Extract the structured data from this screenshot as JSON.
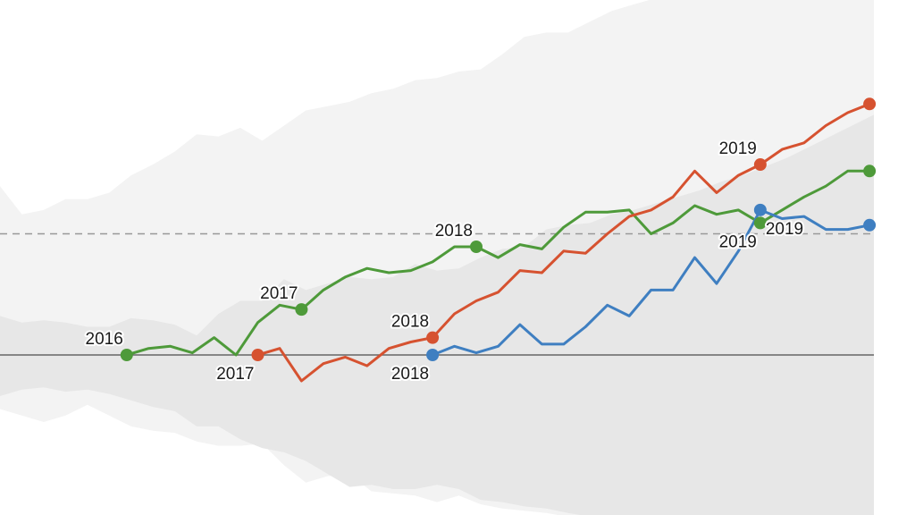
{
  "chart_data": {
    "type": "line",
    "title": "",
    "xlabel": "",
    "ylabel": "",
    "x_range": [
      0,
      40
    ],
    "ylim": [
      -8.5,
      15.5
    ],
    "grid": false,
    "legend": "none",
    "reference_lines": [
      {
        "y": 0,
        "style": "solid",
        "color": "#666666"
      },
      {
        "y": 5.6,
        "style": "dashed",
        "color": "#999999"
      }
    ],
    "bands": {
      "outer": {
        "color": "#f3f3f3",
        "upper": [
          [
            0,
            7.8
          ],
          [
            1,
            6.5
          ],
          [
            2,
            6.7
          ],
          [
            3,
            7.2
          ],
          [
            4,
            7.2
          ],
          [
            5,
            7.5
          ],
          [
            6,
            8.3
          ],
          [
            7,
            8.8
          ],
          [
            8,
            9.4
          ],
          [
            9,
            10.2
          ],
          [
            10,
            10.1
          ],
          [
            11,
            10.5
          ],
          [
            12,
            9.9
          ],
          [
            13,
            10.6
          ],
          [
            14,
            11.3
          ],
          [
            15,
            11.5
          ],
          [
            16,
            11.7
          ],
          [
            17,
            12.1
          ],
          [
            18,
            12.3
          ],
          [
            19,
            12.7
          ],
          [
            20,
            12.8
          ],
          [
            21,
            13.1
          ],
          [
            22,
            13.2
          ],
          [
            23,
            13.9
          ],
          [
            24,
            14.7
          ],
          [
            25,
            14.9
          ],
          [
            26,
            14.9
          ],
          [
            27,
            15.4
          ],
          [
            28,
            15.9
          ],
          [
            29,
            16.2
          ],
          [
            30,
            16.5
          ],
          [
            31,
            16.7
          ],
          [
            32,
            16.9
          ],
          [
            33,
            17.1
          ],
          [
            34,
            17.3
          ],
          [
            35,
            17.5
          ],
          [
            36,
            17.6
          ],
          [
            37,
            17.8
          ],
          [
            38,
            17.9
          ],
          [
            39,
            18.0
          ],
          [
            40,
            18.1
          ]
        ],
        "lower": [
          [
            0,
            -2.5
          ],
          [
            1,
            -2.8
          ],
          [
            2,
            -3.1
          ],
          [
            3,
            -2.8
          ],
          [
            4,
            -2.3
          ],
          [
            5,
            -2.8
          ],
          [
            6,
            -3.3
          ],
          [
            7,
            -3.5
          ],
          [
            8,
            -3.6
          ],
          [
            9,
            -4.0
          ],
          [
            10,
            -4.2
          ],
          [
            11,
            -4.2
          ],
          [
            12,
            -4.1
          ],
          [
            13,
            -5.1
          ],
          [
            14,
            -5.9
          ],
          [
            15,
            -5.6
          ],
          [
            16,
            -5.5
          ],
          [
            17,
            -6.3
          ],
          [
            18,
            -6.4
          ],
          [
            19,
            -6.5
          ],
          [
            20,
            -6.8
          ],
          [
            21,
            -6.5
          ],
          [
            22,
            -6.9
          ],
          [
            23,
            -7.1
          ],
          [
            24,
            -7.2
          ],
          [
            25,
            -7.3
          ],
          [
            26,
            -7.5
          ],
          [
            27,
            -7.8
          ],
          [
            28,
            -8.0
          ],
          [
            29,
            -8.2
          ],
          [
            30,
            -8.3
          ],
          [
            31,
            -8.4
          ],
          [
            32,
            -8.6
          ],
          [
            33,
            -8.8
          ],
          [
            34,
            -9.0
          ],
          [
            35,
            -9.2
          ],
          [
            36,
            -9.4
          ],
          [
            37,
            -9.6
          ],
          [
            38,
            -9.8
          ],
          [
            39,
            -10.0
          ],
          [
            40,
            -10.2
          ]
        ]
      },
      "inner": {
        "color": "#e7e7e7",
        "upper": [
          [
            0,
            1.8
          ],
          [
            1,
            1.5
          ],
          [
            2,
            1.6
          ],
          [
            3,
            1.5
          ],
          [
            4,
            1.3
          ],
          [
            5,
            1.3
          ],
          [
            6,
            1.7
          ],
          [
            7,
            1.6
          ],
          [
            8,
            1.4
          ],
          [
            9,
            0.9
          ],
          [
            10,
            1.9
          ],
          [
            11,
            2.5
          ],
          [
            12,
            2.5
          ],
          [
            13,
            3.5
          ],
          [
            14,
            3.0
          ],
          [
            15,
            3.3
          ],
          [
            16,
            3.6
          ],
          [
            17,
            3.5
          ],
          [
            18,
            3.6
          ],
          [
            19,
            4.2
          ],
          [
            20,
            3.9
          ],
          [
            21,
            4.0
          ],
          [
            22,
            4.5
          ],
          [
            23,
            4.9
          ],
          [
            24,
            5.0
          ],
          [
            25,
            5.8
          ],
          [
            26,
            6.0
          ],
          [
            27,
            6.1
          ],
          [
            28,
            6.5
          ],
          [
            29,
            6.7
          ],
          [
            30,
            7.0
          ],
          [
            31,
            7.3
          ],
          [
            32,
            7.6
          ],
          [
            33,
            8.0
          ],
          [
            34,
            8.3
          ],
          [
            35,
            8.7
          ],
          [
            36,
            9.1
          ],
          [
            37,
            9.6
          ],
          [
            38,
            10.1
          ],
          [
            39,
            10.6
          ],
          [
            40,
            11.1
          ]
        ],
        "lower": [
          [
            0,
            -1.9
          ],
          [
            1,
            -1.6
          ],
          [
            2,
            -1.5
          ],
          [
            3,
            -1.7
          ],
          [
            4,
            -1.6
          ],
          [
            5,
            -1.8
          ],
          [
            6,
            -2.1
          ],
          [
            7,
            -2.4
          ],
          [
            8,
            -2.6
          ],
          [
            9,
            -3.3
          ],
          [
            10,
            -3.3
          ],
          [
            11,
            -3.9
          ],
          [
            12,
            -4.3
          ],
          [
            13,
            -4.5
          ],
          [
            14,
            -4.9
          ],
          [
            15,
            -5.5
          ],
          [
            16,
            -6.1
          ],
          [
            17,
            -6.0
          ],
          [
            18,
            -6.2
          ],
          [
            19,
            -6.2
          ],
          [
            20,
            -6.0
          ],
          [
            21,
            -6.2
          ],
          [
            22,
            -6.7
          ],
          [
            23,
            -6.8
          ],
          [
            24,
            -7.0
          ],
          [
            25,
            -7.1
          ],
          [
            26,
            -7.3
          ],
          [
            27,
            -7.5
          ],
          [
            28,
            -7.8
          ],
          [
            29,
            -8.0
          ],
          [
            30,
            -8.2
          ],
          [
            31,
            -8.4
          ],
          [
            32,
            -8.6
          ],
          [
            33,
            -8.8
          ],
          [
            34,
            -9.0
          ],
          [
            35,
            -9.2
          ],
          [
            36,
            -9.4
          ],
          [
            37,
            -9.6
          ],
          [
            38,
            -9.8
          ],
          [
            39,
            -10.0
          ],
          [
            40,
            -10.2
          ]
        ]
      }
    },
    "series": [
      {
        "color": "#4e9a3a",
        "points": [
          [
            5.8,
            0.0
          ],
          [
            6.8,
            0.3
          ],
          [
            7.8,
            0.4
          ],
          [
            8.8,
            0.1
          ],
          [
            9.8,
            0.8
          ],
          [
            10.8,
            0.0
          ],
          [
            11.8,
            1.5
          ],
          [
            12.8,
            2.3
          ],
          [
            13.8,
            2.1
          ],
          [
            14.8,
            3.0
          ],
          [
            15.8,
            3.6
          ],
          [
            16.8,
            4.0
          ],
          [
            17.8,
            3.8
          ],
          [
            18.8,
            3.9
          ],
          [
            19.8,
            4.3
          ],
          [
            20.8,
            5.0
          ],
          [
            21.8,
            5.0
          ],
          [
            22.8,
            4.5
          ],
          [
            23.8,
            5.1
          ],
          [
            24.8,
            4.9
          ],
          [
            25.8,
            5.9
          ],
          [
            26.8,
            6.6
          ],
          [
            27.8,
            6.6
          ],
          [
            28.8,
            6.7
          ],
          [
            29.8,
            5.6
          ],
          [
            30.8,
            6.1
          ],
          [
            31.8,
            6.9
          ],
          [
            32.8,
            6.5
          ],
          [
            33.8,
            6.7
          ],
          [
            34.8,
            6.1
          ],
          [
            35.8,
            6.7
          ],
          [
            36.8,
            7.3
          ],
          [
            37.8,
            7.8
          ],
          [
            38.8,
            8.5
          ],
          [
            39.8,
            8.5
          ]
        ],
        "markers": [
          [
            5.8,
            0.0
          ],
          [
            13.8,
            2.1
          ],
          [
            21.8,
            5.0
          ],
          [
            34.8,
            6.1
          ],
          [
            39.8,
            8.5
          ]
        ]
      },
      {
        "color": "#d65230",
        "points": [
          [
            11.8,
            0.0
          ],
          [
            12.8,
            0.3
          ],
          [
            13.8,
            -1.2
          ],
          [
            14.8,
            -0.4
          ],
          [
            15.8,
            -0.1
          ],
          [
            16.8,
            -0.5
          ],
          [
            17.8,
            0.3
          ],
          [
            18.8,
            0.6
          ],
          [
            19.8,
            0.8
          ],
          [
            20.8,
            1.9
          ],
          [
            21.8,
            2.5
          ],
          [
            22.8,
            2.9
          ],
          [
            23.8,
            3.9
          ],
          [
            24.8,
            3.8
          ],
          [
            25.8,
            4.8
          ],
          [
            26.8,
            4.7
          ],
          [
            27.8,
            5.6
          ],
          [
            28.8,
            6.4
          ],
          [
            29.8,
            6.7
          ],
          [
            30.8,
            7.3
          ],
          [
            31.8,
            8.5
          ],
          [
            32.8,
            7.5
          ],
          [
            33.8,
            8.3
          ],
          [
            34.8,
            8.8
          ],
          [
            35.8,
            9.5
          ],
          [
            36.8,
            9.8
          ],
          [
            37.8,
            10.6
          ],
          [
            38.8,
            11.2
          ],
          [
            39.8,
            11.6
          ]
        ],
        "markers": [
          [
            11.8,
            0.0
          ],
          [
            19.8,
            0.8
          ],
          [
            34.8,
            8.8
          ],
          [
            39.8,
            11.6
          ]
        ]
      },
      {
        "color": "#3f7fc1",
        "points": [
          [
            19.8,
            0.0
          ],
          [
            20.8,
            0.4
          ],
          [
            21.8,
            0.1
          ],
          [
            22.8,
            0.4
          ],
          [
            23.8,
            1.4
          ],
          [
            24.8,
            0.5
          ],
          [
            25.8,
            0.5
          ],
          [
            26.8,
            1.3
          ],
          [
            27.8,
            2.3
          ],
          [
            28.8,
            1.8
          ],
          [
            29.8,
            3.0
          ],
          [
            30.8,
            3.0
          ],
          [
            31.8,
            4.5
          ],
          [
            32.8,
            3.3
          ],
          [
            33.8,
            4.8
          ],
          [
            34.8,
            6.7
          ],
          [
            35.8,
            6.3
          ],
          [
            36.8,
            6.4
          ],
          [
            37.8,
            5.8
          ],
          [
            38.8,
            5.8
          ],
          [
            39.8,
            6.0
          ]
        ],
        "markers": [
          [
            19.8,
            0.0
          ],
          [
            34.8,
            6.7
          ],
          [
            39.8,
            6.0
          ]
        ]
      }
    ],
    "annotations": [
      {
        "text": "2016",
        "x": 5.8,
        "y": 0.0,
        "placement": "above-left"
      },
      {
        "text": "2017",
        "x": 13.8,
        "y": 2.1,
        "placement": "above-left"
      },
      {
        "text": "2018",
        "x": 21.8,
        "y": 5.0,
        "placement": "above-left"
      },
      {
        "text": "2019",
        "x": 34.8,
        "y": 6.1,
        "placement": "below-left"
      },
      {
        "text": "2017",
        "x": 11.8,
        "y": 0.0,
        "placement": "below-left"
      },
      {
        "text": "2018",
        "x": 19.8,
        "y": 0.8,
        "placement": "above-left"
      },
      {
        "text": "2019",
        "x": 34.8,
        "y": 8.8,
        "placement": "above-left"
      },
      {
        "text": "2018",
        "x": 19.8,
        "y": 0.0,
        "placement": "below-left"
      },
      {
        "text": "2019",
        "x": 34.8,
        "y": 6.7,
        "placement": "right"
      }
    ]
  }
}
